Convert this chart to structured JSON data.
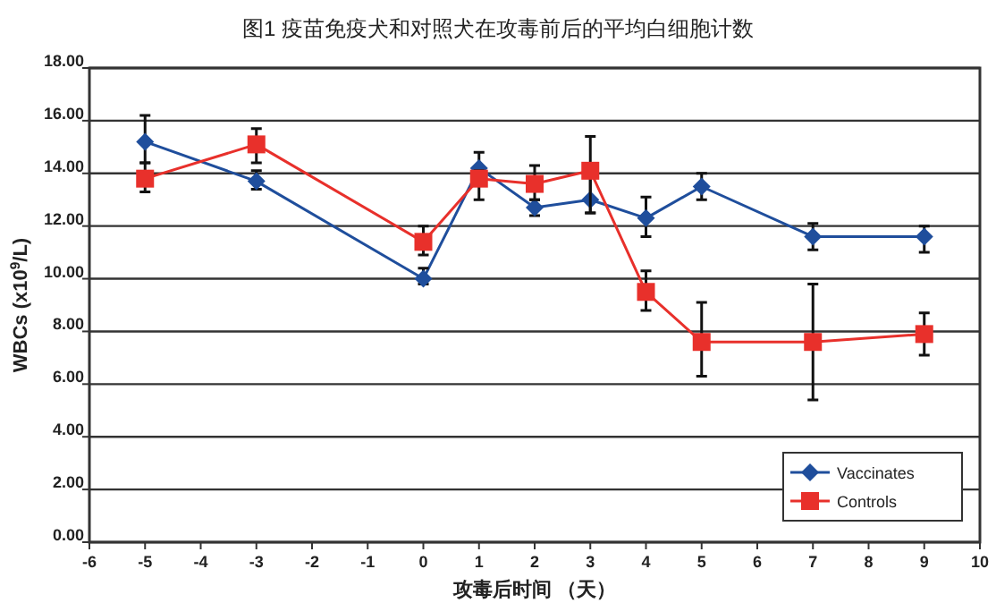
{
  "chart_data": {
    "type": "line",
    "title": "图1  疫苗免疫犬和对照犬在攻毒前后的平均白细胞计数",
    "xlabel": "攻毒后时间 （天）",
    "ylabel": "WBCs (x10$^{9}$/L)",
    "x": [
      -5,
      -3,
      0,
      1,
      2,
      3,
      4,
      5,
      7,
      9
    ],
    "xlim": [
      -6,
      10
    ],
    "xticks": [
      -6,
      -5,
      -4,
      -3,
      -2,
      -1,
      0,
      1,
      2,
      3,
      4,
      5,
      6,
      7,
      8,
      9,
      10
    ],
    "ylim": [
      0,
      18
    ],
    "yticks": [
      {
        "value": 0,
        "label": "0.00"
      },
      {
        "value": 2,
        "label": "2.00"
      },
      {
        "value": 4,
        "label": "4.00"
      },
      {
        "value": 6,
        "label": "6.00"
      },
      {
        "value": 8,
        "label": "8.00"
      },
      {
        "value": 10,
        "label": "10.00"
      },
      {
        "value": 12,
        "label": "12.00"
      },
      {
        "value": 14,
        "label": "14.00"
      },
      {
        "value": 16,
        "label": "16.00"
      },
      {
        "value": 18,
        "label": "18.00"
      }
    ],
    "grid": "y",
    "legend": "bottom right",
    "line_style": "solid",
    "series": [
      {
        "name": "Vaccinates",
        "color": "#1f4e9c",
        "marker": "diamond",
        "values": [
          15.2,
          13.7,
          10.0,
          14.2,
          12.7,
          13.0,
          12.3,
          13.5,
          11.6,
          11.6
        ],
        "errors": [
          [
            14.4,
            16.2
          ],
          [
            13.4,
            14.1
          ],
          [
            9.8,
            10.4
          ],
          [
            14.2,
            14.8
          ],
          [
            12.4,
            13.0
          ],
          [
            12.5,
            13.9
          ],
          [
            11.6,
            13.1
          ],
          [
            13.0,
            14.0
          ],
          [
            11.1,
            12.1
          ],
          [
            11.0,
            12.0
          ]
        ]
      },
      {
        "name": "Controls",
        "color": "#e8302b",
        "marker": "square",
        "values": [
          13.8,
          15.1,
          11.4,
          13.8,
          13.6,
          14.1,
          9.5,
          7.6,
          7.6,
          7.9
        ],
        "errors": [
          [
            13.3,
            14.4
          ],
          [
            14.4,
            15.7
          ],
          [
            10.9,
            12.0
          ],
          [
            13.0,
            14.1
          ],
          [
            13.0,
            14.3
          ],
          [
            12.5,
            15.4
          ],
          [
            8.8,
            10.3
          ],
          [
            6.3,
            9.1
          ],
          [
            5.4,
            9.8
          ],
          [
            7.1,
            8.7
          ]
        ]
      }
    ]
  }
}
